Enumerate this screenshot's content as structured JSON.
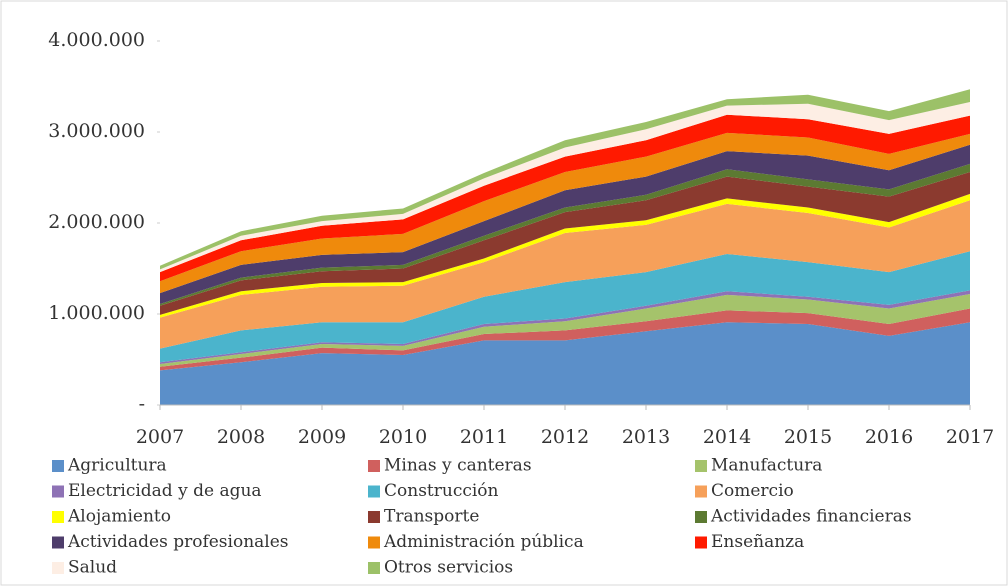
{
  "chart_data": {
    "type": "stacked_area",
    "categories": [
      "2007",
      "2008",
      "2009",
      "2010",
      "2011",
      "2012",
      "2013",
      "2014",
      "2015",
      "2016",
      "2017"
    ],
    "ylim": [
      0,
      4000000
    ],
    "yticks": [
      {
        "value": 0,
        "label": "-"
      },
      {
        "value": 1000000,
        "label": "1.000.000"
      },
      {
        "value": 2000000,
        "label": "2.000.000"
      },
      {
        "value": 3000000,
        "label": "3.000.000"
      },
      {
        "value": 4000000,
        "label": "4.000.000"
      }
    ],
    "series": [
      {
        "name": "Agricultura",
        "color": "#5b8fc9",
        "values": [
          380000,
          470000,
          570000,
          550000,
          710000,
          710000,
          810000,
          910000,
          890000,
          760000,
          910000
        ]
      },
      {
        "name": "Minas y canteras",
        "color": "#d0605e",
        "values": [
          40000,
          50000,
          60000,
          50000,
          70000,
          110000,
          110000,
          130000,
          120000,
          130000,
          150000
        ]
      },
      {
        "name": "Manufactura",
        "color": "#a5c36b",
        "values": [
          30000,
          40000,
          40000,
          50000,
          80000,
          100000,
          140000,
          170000,
          150000,
          170000,
          160000
        ]
      },
      {
        "name": "Electricidad y de agua",
        "color": "#8e72b5",
        "values": [
          20000,
          20000,
          20000,
          20000,
          30000,
          30000,
          30000,
          40000,
          30000,
          40000,
          40000
        ]
      },
      {
        "name": "Construcción",
        "color": "#4bb4cc",
        "values": [
          150000,
          240000,
          220000,
          240000,
          300000,
          400000,
          370000,
          410000,
          380000,
          360000,
          430000
        ]
      },
      {
        "name": "Comercio",
        "color": "#f6a05a",
        "values": [
          340000,
          390000,
          390000,
          400000,
          380000,
          540000,
          520000,
          550000,
          540000,
          490000,
          560000
        ]
      },
      {
        "name": "Alojamiento",
        "color": "#ffff00",
        "values": [
          30000,
          40000,
          40000,
          40000,
          40000,
          50000,
          50000,
          60000,
          60000,
          60000,
          70000
        ]
      },
      {
        "name": "Transporte",
        "color": "#8b3a2f",
        "values": [
          100000,
          120000,
          130000,
          150000,
          200000,
          180000,
          220000,
          240000,
          230000,
          280000,
          240000
        ]
      },
      {
        "name": "Actividades financieras",
        "color": "#5c7a32",
        "values": [
          20000,
          30000,
          40000,
          40000,
          50000,
          50000,
          60000,
          80000,
          80000,
          80000,
          90000
        ]
      },
      {
        "name": "Actividades profesionales",
        "color": "#4e3d6b",
        "values": [
          120000,
          140000,
          140000,
          140000,
          160000,
          190000,
          200000,
          200000,
          260000,
          210000,
          210000
        ]
      },
      {
        "name": "Administración pública",
        "color": "#ef8a0c",
        "values": [
          130000,
          150000,
          180000,
          200000,
          220000,
          200000,
          220000,
          200000,
          200000,
          180000,
          120000
        ]
      },
      {
        "name": "Enseñanza",
        "color": "#ff1a00",
        "values": [
          100000,
          120000,
          140000,
          160000,
          170000,
          170000,
          180000,
          200000,
          200000,
          220000,
          200000
        ]
      },
      {
        "name": "Salud",
        "color": "#fdeee4",
        "values": [
          30000,
          50000,
          50000,
          60000,
          80000,
          100000,
          120000,
          100000,
          170000,
          150000,
          150000
        ]
      },
      {
        "name": "Otros servicios",
        "color": "#9cc168",
        "values": [
          40000,
          50000,
          60000,
          60000,
          60000,
          80000,
          80000,
          70000,
          100000,
          100000,
          140000
        ]
      }
    ]
  }
}
